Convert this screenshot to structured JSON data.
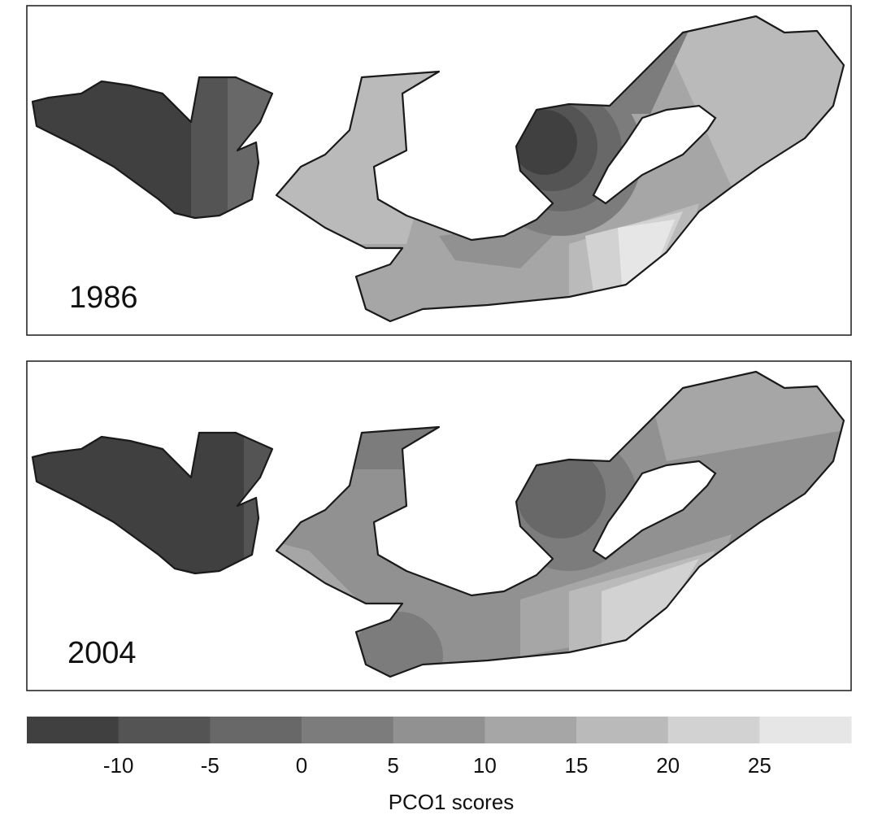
{
  "panels": [
    {
      "label": "1986"
    },
    {
      "label": "2004"
    }
  ],
  "colorbar": {
    "label": "PCO1 scores",
    "lim": [
      -15,
      30
    ],
    "ticks": [
      -10,
      -5,
      0,
      5,
      10,
      15,
      20,
      25
    ],
    "colors": [
      "#404040",
      "#545454",
      "#686868",
      "#7c7c7c",
      "#919191",
      "#a6a6a6",
      "#bababa",
      "#d2d2d2",
      "#e6e6e6"
    ]
  }
}
